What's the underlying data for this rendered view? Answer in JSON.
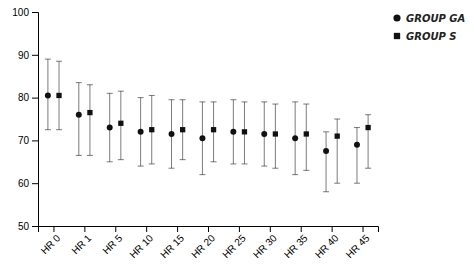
{
  "chart_data": {
    "type": "errorbar",
    "categories": [
      "HR 0",
      "HR 1",
      "HR 5",
      "HR 10",
      "HR 15",
      "HR 20",
      "HR 25",
      "HR 30",
      "HR 35",
      "HR 40",
      "HR 45"
    ],
    "series": [
      {
        "name": "GROUP GA",
        "color": "#111111",
        "marker": "circle",
        "values": [
          80.5,
          76.0,
          73.0,
          72.0,
          71.5,
          70.5,
          72.0,
          71.5,
          70.5,
          67.5,
          69.0
        ],
        "error_upper": [
          8.5,
          7.5,
          8.0,
          8.0,
          8.0,
          8.5,
          7.5,
          7.5,
          8.5,
          4.5,
          4.0
        ],
        "error_lower": [
          8.0,
          9.5,
          8.0,
          8.0,
          8.0,
          8.5,
          7.5,
          7.5,
          8.5,
          9.5,
          9.0
        ]
      },
      {
        "name": "GROUP S",
        "color": "#111111",
        "marker": "square",
        "values": [
          80.5,
          76.5,
          74.0,
          72.5,
          72.5,
          72.5,
          72.0,
          71.5,
          71.5,
          71.0,
          73.0
        ],
        "error_upper": [
          8.0,
          6.5,
          7.5,
          8.0,
          7.0,
          6.5,
          7.0,
          7.0,
          7.0,
          4.0,
          3.0
        ],
        "error_lower": [
          8.0,
          10.0,
          8.5,
          8.0,
          7.0,
          7.5,
          7.5,
          8.0,
          8.5,
          11.0,
          9.5
        ]
      }
    ],
    "ylim": [
      50,
      100
    ],
    "yticks": [
      50,
      60,
      70,
      80,
      90,
      100
    ],
    "grid": false,
    "legend": "right"
  }
}
